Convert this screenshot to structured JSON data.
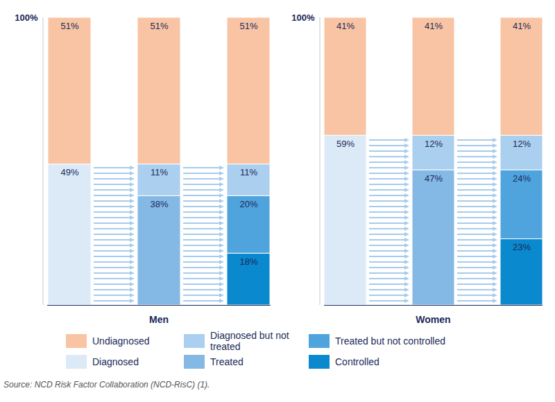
{
  "chart_data": [
    {
      "type": "bar",
      "title": "Men",
      "stacked": true,
      "data_labels": true,
      "tick_labels": "y",
      "legend": "bottom",
      "categories": [
        null,
        null,
        null
      ],
      "ylim": [
        0,
        100
      ],
      "yticks": [
        {
          "value": 100,
          "label": "100%"
        }
      ],
      "series": [
        {
          "name": "Undiagnosed",
          "color": "#f8c4a4",
          "values": [
            51,
            51,
            51
          ],
          "value_labels": [
            "51%",
            "51%",
            "51%"
          ]
        },
        {
          "name": "Diagnosed",
          "color": "#dceaf7",
          "values": [
            49,
            null,
            null
          ],
          "value_labels": [
            "49%",
            null,
            null
          ]
        },
        {
          "name": "Diagnosed but not treated",
          "color": "#aacfef",
          "values": [
            null,
            11,
            11
          ],
          "value_labels": [
            null,
            "11%",
            "11%"
          ]
        },
        {
          "name": "Treated",
          "color": "#85b9e5",
          "values": [
            null,
            38,
            null
          ],
          "value_labels": [
            null,
            "38%",
            null
          ]
        },
        {
          "name": "Treated but not controlled",
          "color": "#4fa4de",
          "values": [
            null,
            null,
            20
          ],
          "value_labels": [
            null,
            null,
            "20%"
          ]
        },
        {
          "name": "Controlled",
          "color": "#0a89cf",
          "values": [
            null,
            null,
            18
          ],
          "value_labels": [
            null,
            null,
            "18%"
          ]
        }
      ]
    },
    {
      "type": "bar",
      "title": "Women",
      "stacked": true,
      "data_labels": true,
      "tick_labels": "y",
      "categories": [
        null,
        null,
        null
      ],
      "ylim": [
        0,
        100
      ],
      "yticks": [
        {
          "value": 100,
          "label": "100%"
        }
      ],
      "series": [
        {
          "name": "Undiagnosed",
          "color": "#f8c4a4",
          "values": [
            41,
            41,
            41
          ],
          "value_labels": [
            "41%",
            "41%",
            "41%"
          ]
        },
        {
          "name": "Diagnosed",
          "color": "#dceaf7",
          "values": [
            59,
            null,
            null
          ],
          "value_labels": [
            "59%",
            null,
            null
          ]
        },
        {
          "name": "Diagnosed but not treated",
          "color": "#aacfef",
          "values": [
            null,
            12,
            12
          ],
          "value_labels": [
            null,
            "12%",
            "12%"
          ]
        },
        {
          "name": "Treated",
          "color": "#85b9e5",
          "values": [
            null,
            47,
            null
          ],
          "value_labels": [
            null,
            "47%",
            null
          ]
        },
        {
          "name": "Treated but not controlled",
          "color": "#4fa4de",
          "values": [
            null,
            null,
            24
          ],
          "value_labels": [
            null,
            null,
            "24%"
          ]
        },
        {
          "name": "Controlled",
          "color": "#0a89cf",
          "values": [
            null,
            null,
            23
          ],
          "value_labels": [
            null,
            null,
            "23%"
          ]
        }
      ]
    }
  ],
  "source": "Source: NCD Risk Factor Collaboration (NCD-RisC) (1)."
}
